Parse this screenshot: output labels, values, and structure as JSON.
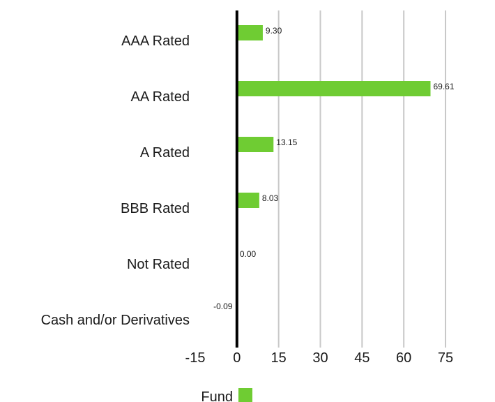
{
  "chart_data": {
    "type": "bar",
    "orientation": "horizontal",
    "categories": [
      "AAA Rated",
      "AA Rated",
      "A Rated",
      "BBB Rated",
      "Not Rated",
      "Cash and/or Derivatives"
    ],
    "series": [
      {
        "name": "Fund",
        "values": [
          9.3,
          69.61,
          13.15,
          8.03,
          0.0,
          -0.09
        ],
        "labels": [
          "9.30",
          "69.61",
          "13.15",
          "8.03",
          "0.00",
          "-0.09"
        ],
        "color": "#6fcc33"
      }
    ],
    "xlim": [
      -15,
      75
    ],
    "xticks": [
      "-15",
      "0",
      "15",
      "30",
      "45",
      "60",
      "75"
    ],
    "grid": true,
    "grid_color": "#c8c8c8",
    "axis_color": "#000000",
    "legend": "bottom"
  }
}
